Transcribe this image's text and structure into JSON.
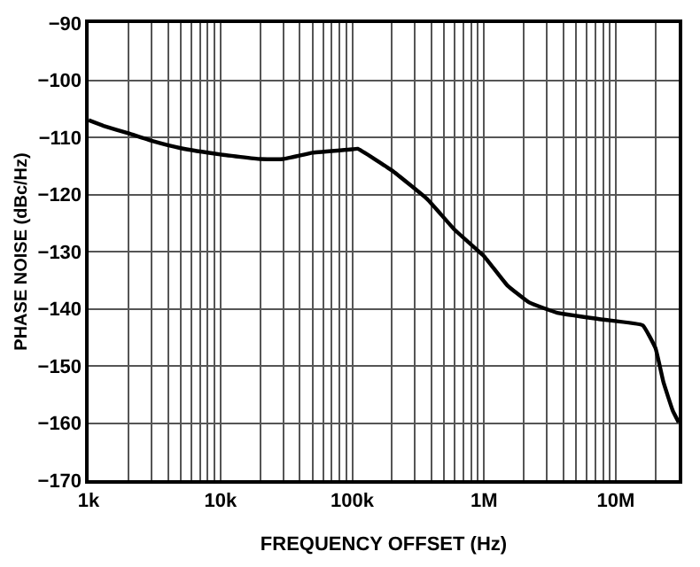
{
  "chart_data": {
    "type": "line",
    "xlabel": "FREQUENCY OFFSET (Hz)",
    "ylabel": "PHASE NOISE (dBc/Hz)",
    "log": "x",
    "grid": true,
    "marker": "none",
    "line_style": "solid",
    "xlim": [
      1000,
      30000000
    ],
    "ylim": [
      -170,
      -90
    ],
    "xticks": [
      {
        "value": 1000,
        "label": "1k"
      },
      {
        "value": 2000,
        "label": null
      },
      {
        "value": 3000,
        "label": null
      },
      {
        "value": 4000,
        "label": null
      },
      {
        "value": 5000,
        "label": null
      },
      {
        "value": 6000,
        "label": null
      },
      {
        "value": 7000,
        "label": null
      },
      {
        "value": 8000,
        "label": null
      },
      {
        "value": 9000,
        "label": null
      },
      {
        "value": 10000,
        "label": "10k"
      },
      {
        "value": 20000,
        "label": null
      },
      {
        "value": 30000,
        "label": null
      },
      {
        "value": 40000,
        "label": null
      },
      {
        "value": 50000,
        "label": null
      },
      {
        "value": 60000,
        "label": null
      },
      {
        "value": 70000,
        "label": null
      },
      {
        "value": 80000,
        "label": null
      },
      {
        "value": 90000,
        "label": null
      },
      {
        "value": 100000,
        "label": "100k"
      },
      {
        "value": 200000,
        "label": null
      },
      {
        "value": 300000,
        "label": null
      },
      {
        "value": 400000,
        "label": null
      },
      {
        "value": 500000,
        "label": null
      },
      {
        "value": 600000,
        "label": null
      },
      {
        "value": 700000,
        "label": null
      },
      {
        "value": 800000,
        "label": null
      },
      {
        "value": 900000,
        "label": null
      },
      {
        "value": 1000000,
        "label": "1M"
      },
      {
        "value": 2000000,
        "label": null
      },
      {
        "value": 3000000,
        "label": null
      },
      {
        "value": 4000000,
        "label": null
      },
      {
        "value": 5000000,
        "label": null
      },
      {
        "value": 6000000,
        "label": null
      },
      {
        "value": 7000000,
        "label": null
      },
      {
        "value": 8000000,
        "label": null
      },
      {
        "value": 9000000,
        "label": null
      },
      {
        "value": 10000000,
        "label": "10M"
      },
      {
        "value": 20000000,
        "label": null
      }
    ],
    "yticks": [
      -170,
      -160,
      -150,
      -140,
      -130,
      -120,
      -110,
      -100,
      -90
    ],
    "series": [
      {
        "color": "#000000",
        "x": [
          1000,
          1300,
          2000,
          3000,
          5000,
          10000,
          20000,
          30000,
          50000,
          100000,
          110000,
          200000,
          370000,
          600000,
          1000000,
          1500000,
          2200000,
          3600000,
          8000000,
          16000000,
          20000000,
          23000000,
          27000000,
          30000000
        ],
        "values": [
          -107,
          -108,
          -109.3,
          -110.6,
          -111.9,
          -113,
          -113.8,
          -113.8,
          -112.7,
          -112.1,
          -112,
          -115.8,
          -120.8,
          -126.2,
          -130.8,
          -135.9,
          -138.9,
          -140.7,
          -141.9,
          -142.9,
          -146.9,
          -152.9,
          -157.8,
          -159.9
        ]
      }
    ]
  }
}
